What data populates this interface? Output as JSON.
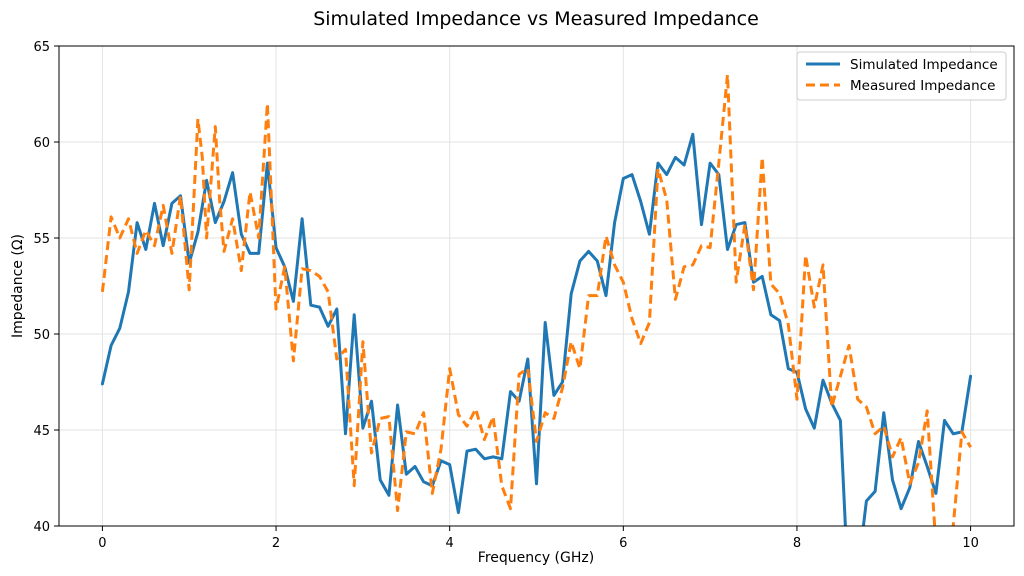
{
  "chart_data": {
    "type": "line",
    "title": "Simulated Impedance vs Measured Impedance",
    "xlabel": "Frequency (GHz)",
    "ylabel": "Impedance (Ω)",
    "xlim": [
      -0.5,
      10.5
    ],
    "ylim": [
      40,
      65
    ],
    "xticks": [
      0,
      2,
      4,
      6,
      8,
      10
    ],
    "yticks": [
      40,
      45,
      50,
      55,
      60,
      65
    ],
    "grid": true,
    "legend_position": "top-right",
    "series": [
      {
        "name": "Simulated Impedance",
        "color": "#1f77b4",
        "style": "solid",
        "x": [
          0.0,
          0.1,
          0.2,
          0.3,
          0.4,
          0.5,
          0.6,
          0.7,
          0.8,
          0.9,
          1.0,
          1.1,
          1.2,
          1.3,
          1.4,
          1.5,
          1.6,
          1.7,
          1.8,
          1.9,
          2.0,
          2.1,
          2.2,
          2.3,
          2.4,
          2.5,
          2.6,
          2.7,
          2.8,
          2.9,
          3.0,
          3.1,
          3.2,
          3.3,
          3.4,
          3.5,
          3.6,
          3.7,
          3.8,
          3.9,
          4.0,
          4.1,
          4.2,
          4.3,
          4.4,
          4.5,
          4.6,
          4.7,
          4.8,
          4.9,
          5.0,
          5.1,
          5.2,
          5.3,
          5.4,
          5.5,
          5.6,
          5.7,
          5.8,
          5.9,
          6.0,
          6.1,
          6.2,
          6.3,
          6.4,
          6.5,
          6.6,
          6.7,
          6.8,
          6.9,
          7.0,
          7.1,
          7.2,
          7.3,
          7.4,
          7.5,
          7.6,
          7.7,
          7.8,
          7.9,
          8.0,
          8.1,
          8.2,
          8.3,
          8.4,
          8.5,
          8.6,
          8.7,
          8.8,
          8.9,
          9.0,
          9.1,
          9.2,
          9.3,
          9.4,
          9.5,
          9.6,
          9.7,
          9.8,
          9.9,
          10.0
        ],
        "y": [
          47.4,
          49.4,
          50.3,
          52.2,
          55.8,
          54.4,
          56.8,
          54.6,
          56.8,
          57.2,
          53.7,
          55.3,
          58.0,
          55.8,
          56.9,
          58.4,
          55.2,
          54.2,
          54.2,
          58.9,
          54.5,
          53.5,
          51.7,
          56.0,
          51.5,
          51.4,
          50.4,
          51.3,
          44.8,
          51.0,
          45.1,
          46.5,
          42.4,
          41.6,
          46.3,
          42.7,
          43.1,
          42.3,
          42.1,
          43.4,
          43.2,
          40.7,
          43.9,
          44.0,
          43.5,
          43.6,
          43.5,
          47.0,
          46.5,
          48.7,
          42.2,
          50.6,
          46.8,
          47.5,
          52.1,
          53.8,
          54.3,
          53.8,
          52.0,
          55.8,
          58.1,
          58.3,
          56.9,
          55.2,
          58.9,
          58.3,
          59.2,
          58.8,
          60.4,
          55.7,
          58.9,
          58.3,
          54.4,
          55.7,
          55.8,
          52.7,
          53.0,
          51.0,
          50.7,
          48.2,
          48.0,
          46.1,
          45.1,
          47.6,
          46.4,
          45.5,
          36.0,
          37.5,
          41.3,
          41.8,
          45.9,
          42.4,
          40.9,
          42.0,
          44.4,
          43.1,
          41.7,
          45.5,
          44.8,
          44.9,
          47.8
        ]
      },
      {
        "name": "Measured Impedance",
        "color": "#ff7f0e",
        "style": "dashed",
        "x": [
          0.0,
          0.1,
          0.2,
          0.3,
          0.4,
          0.5,
          0.6,
          0.7,
          0.8,
          0.9,
          1.0,
          1.1,
          1.15,
          1.2,
          1.3,
          1.35,
          1.4,
          1.5,
          1.6,
          1.7,
          1.8,
          1.9,
          2.0,
          2.1,
          2.2,
          2.3,
          2.4,
          2.5,
          2.6,
          2.7,
          2.8,
          2.9,
          3.0,
          3.1,
          3.2,
          3.3,
          3.4,
          3.5,
          3.6,
          3.7,
          3.8,
          3.9,
          4.0,
          4.1,
          4.2,
          4.3,
          4.4,
          4.5,
          4.6,
          4.7,
          4.8,
          4.9,
          5.0,
          5.1,
          5.2,
          5.3,
          5.4,
          5.5,
          5.6,
          5.7,
          5.8,
          5.9,
          6.0,
          6.1,
          6.2,
          6.3,
          6.4,
          6.5,
          6.6,
          6.7,
          6.8,
          6.9,
          7.0,
          7.1,
          7.2,
          7.3,
          7.4,
          7.5,
          7.6,
          7.7,
          7.8,
          7.9,
          8.0,
          8.1,
          8.2,
          8.3,
          8.4,
          8.5,
          8.6,
          8.7,
          8.8,
          8.9,
          9.0,
          9.1,
          9.2,
          9.3,
          9.4,
          9.5,
          9.6,
          9.7,
          9.8,
          9.9,
          10.0
        ],
        "y": [
          52.2,
          56.1,
          55.0,
          56.0,
          54.2,
          55.4,
          54.6,
          56.7,
          54.2,
          57.2,
          52.3,
          61.2,
          59.2,
          55.0,
          60.8,
          57.0,
          54.3,
          56.0,
          53.3,
          57.4,
          55.0,
          62.0,
          51.3,
          53.5,
          48.6,
          53.4,
          53.3,
          53.0,
          52.2,
          48.7,
          49.2,
          42.1,
          49.6,
          43.8,
          45.6,
          45.7,
          40.8,
          44.9,
          44.8,
          45.9,
          41.7,
          44.0,
          48.2,
          45.8,
          45.2,
          46.1,
          44.5,
          45.7,
          42.1,
          40.9,
          47.9,
          48.2,
          44.4,
          45.9,
          45.6,
          47.2,
          49.6,
          48.2,
          52.0,
          52.0,
          55.1,
          53.6,
          52.7,
          50.8,
          49.5,
          50.6,
          58.6,
          57.0,
          51.8,
          53.5,
          53.6,
          54.6,
          54.5,
          58.9,
          63.5,
          52.7,
          55.7,
          52.3,
          59.2,
          52.6,
          52.1,
          50.5,
          46.6,
          54.1,
          51.4,
          53.6,
          46.2,
          47.8,
          49.4,
          46.6,
          46.2,
          44.8,
          45.2,
          43.6,
          44.6,
          42.2,
          43.3,
          46.0,
          39.0,
          38.0,
          40.0,
          44.9,
          44.1
        ]
      }
    ]
  }
}
